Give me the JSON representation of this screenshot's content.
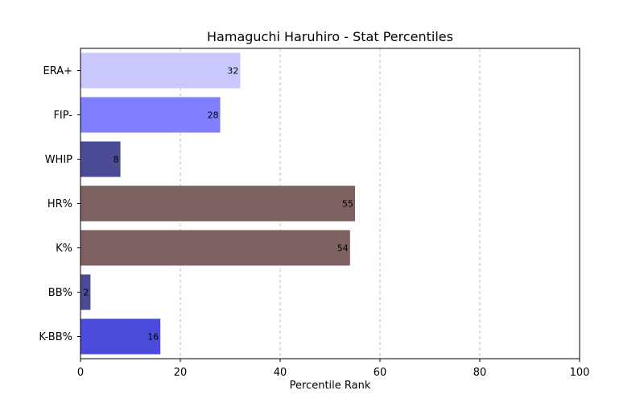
{
  "chart_data": {
    "type": "bar",
    "orientation": "horizontal",
    "title": "Hamaguchi Haruhiro - Stat Percentiles",
    "xlabel": "Percentile Rank",
    "ylabel": "",
    "xlim": [
      0,
      100
    ],
    "xticks": [
      "0",
      "20",
      "40",
      "60",
      "80",
      "100"
    ],
    "grid": "x-dashed",
    "categories": [
      "ERA+",
      "FIP-",
      "WHIP",
      "HR%",
      "K%",
      "BB%",
      "K-BB%"
    ],
    "values": [
      32,
      28,
      8,
      55,
      54,
      2,
      16
    ],
    "colors": [
      "#c8c8ff",
      "#8080ff",
      "#4b4b96",
      "#7e6262",
      "#7e6262",
      "#4b4b96",
      "#4b4bdc"
    ]
  }
}
